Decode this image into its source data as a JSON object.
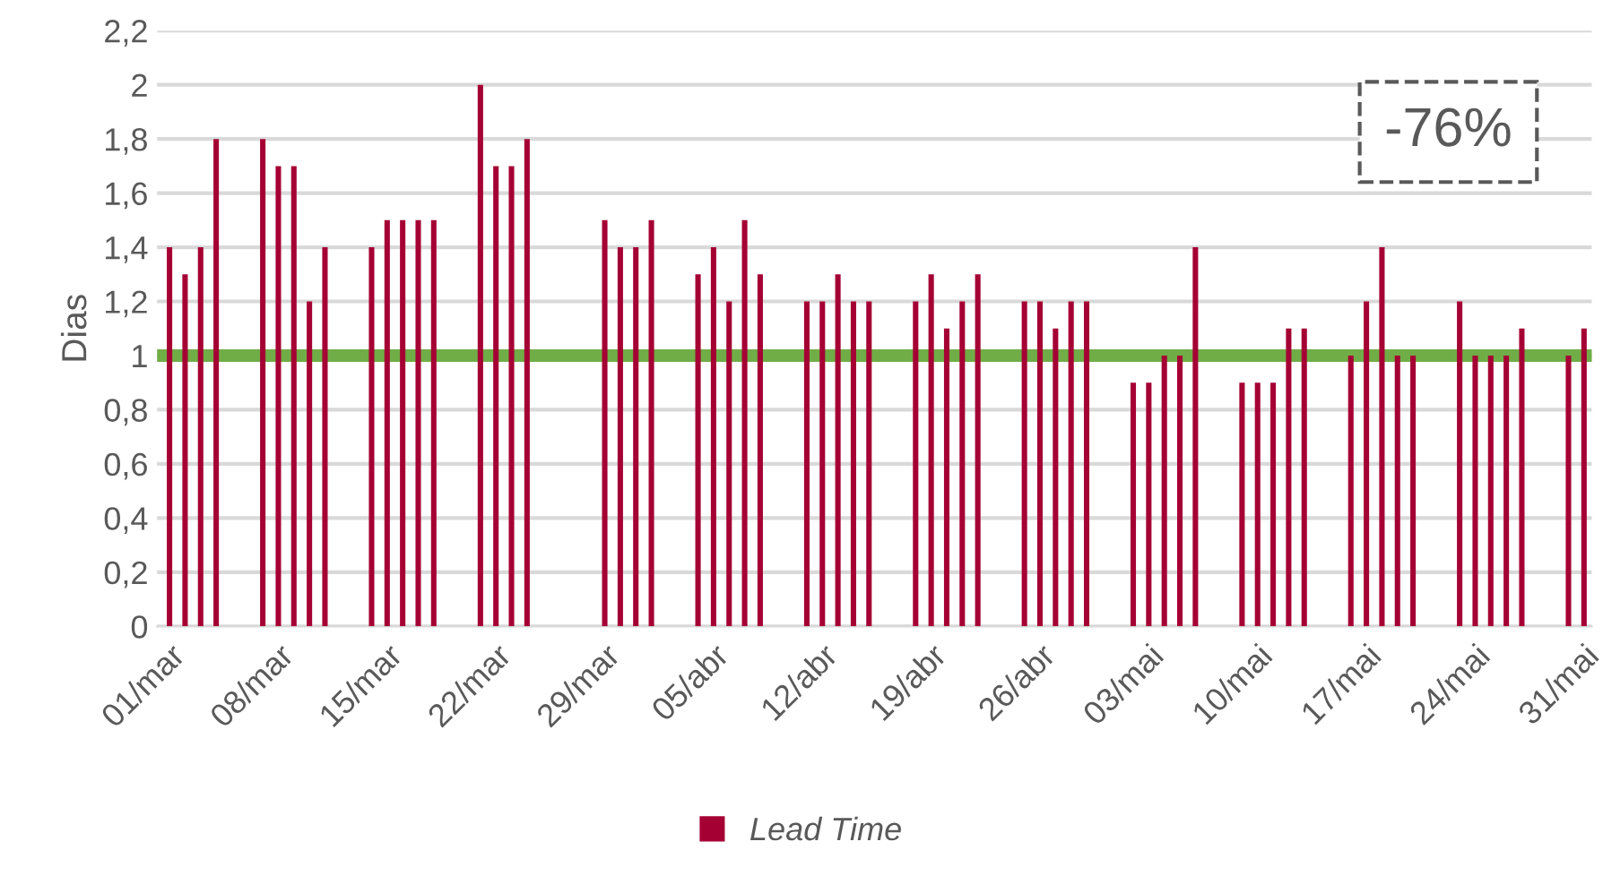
{
  "chart_data": {
    "type": "bar",
    "ylabel": "Dias",
    "categories": [
      "01/mar",
      null,
      null,
      null,
      null,
      null,
      null,
      "08/mar",
      null,
      null,
      null,
      null,
      null,
      null,
      "15/mar",
      null,
      null,
      null,
      null,
      null,
      null,
      "22/mar",
      null,
      null,
      null,
      null,
      null,
      null,
      "29/mar",
      null,
      null,
      null,
      null,
      null,
      null,
      "05/abr",
      null,
      null,
      null,
      null,
      null,
      null,
      "12/abr",
      null,
      null,
      null,
      null,
      null,
      null,
      "19/abr",
      null,
      null,
      null,
      null,
      null,
      null,
      "26/abr",
      null,
      null,
      null,
      null,
      null,
      null,
      "03/mai",
      null,
      null,
      null,
      null,
      null,
      null,
      "10/mai",
      null,
      null,
      null,
      null,
      null,
      null,
      "17/mai",
      null,
      null,
      null,
      null,
      null,
      null,
      "24/mai",
      null,
      null,
      null,
      null,
      null,
      null,
      "31/mai"
    ],
    "series": [
      {
        "name": "Lead Time",
        "color": "#a50034",
        "values": [
          1.4,
          1.3,
          1.4,
          1.8,
          null,
          null,
          1.8,
          1.7,
          1.7,
          1.2,
          1.4,
          null,
          null,
          1.4,
          1.5,
          1.5,
          1.5,
          1.5,
          null,
          null,
          2.0,
          1.7,
          1.7,
          1.8,
          null,
          null,
          null,
          null,
          1.5,
          1.4,
          1.4,
          1.5,
          null,
          null,
          1.3,
          1.4,
          1.2,
          1.5,
          1.3,
          null,
          null,
          1.2,
          1.2,
          1.3,
          1.2,
          1.2,
          null,
          null,
          1.2,
          1.3,
          1.1,
          1.2,
          1.3,
          null,
          null,
          1.2,
          1.2,
          1.1,
          1.2,
          1.2,
          null,
          null,
          0.9,
          0.9,
          1.0,
          1.0,
          1.4,
          null,
          null,
          0.9,
          0.9,
          0.9,
          1.1,
          1.1,
          null,
          null,
          1.0,
          1.2,
          1.4,
          1.0,
          1.0,
          null,
          null,
          1.2,
          1.0,
          1.0,
          1.0,
          1.1,
          null,
          null,
          1.0,
          1.1
        ]
      }
    ],
    "ylim": [
      0,
      2.2
    ],
    "yticks": [
      {
        "value": 0,
        "label": "0"
      },
      {
        "value": 0.2,
        "label": "0,2"
      },
      {
        "value": 0.4,
        "label": "0,4"
      },
      {
        "value": 0.6,
        "label": "0,6"
      },
      {
        "value": 0.8,
        "label": "0,8"
      },
      {
        "value": 1,
        "label": "1"
      },
      {
        "value": 1.2,
        "label": "1,2"
      },
      {
        "value": 1.4,
        "label": "1,4"
      },
      {
        "value": 1.6,
        "label": "1,6"
      },
      {
        "value": 1.8,
        "label": "1,8"
      },
      {
        "value": 2,
        "label": "2"
      },
      {
        "value": 2.2,
        "label": "2,2"
      }
    ],
    "ref_lines": [
      {
        "axis": "y",
        "value": 1,
        "color": "#70ad47"
      }
    ],
    "annotations": [
      "-76%"
    ],
    "grid": "y",
    "legend": "bottom"
  }
}
